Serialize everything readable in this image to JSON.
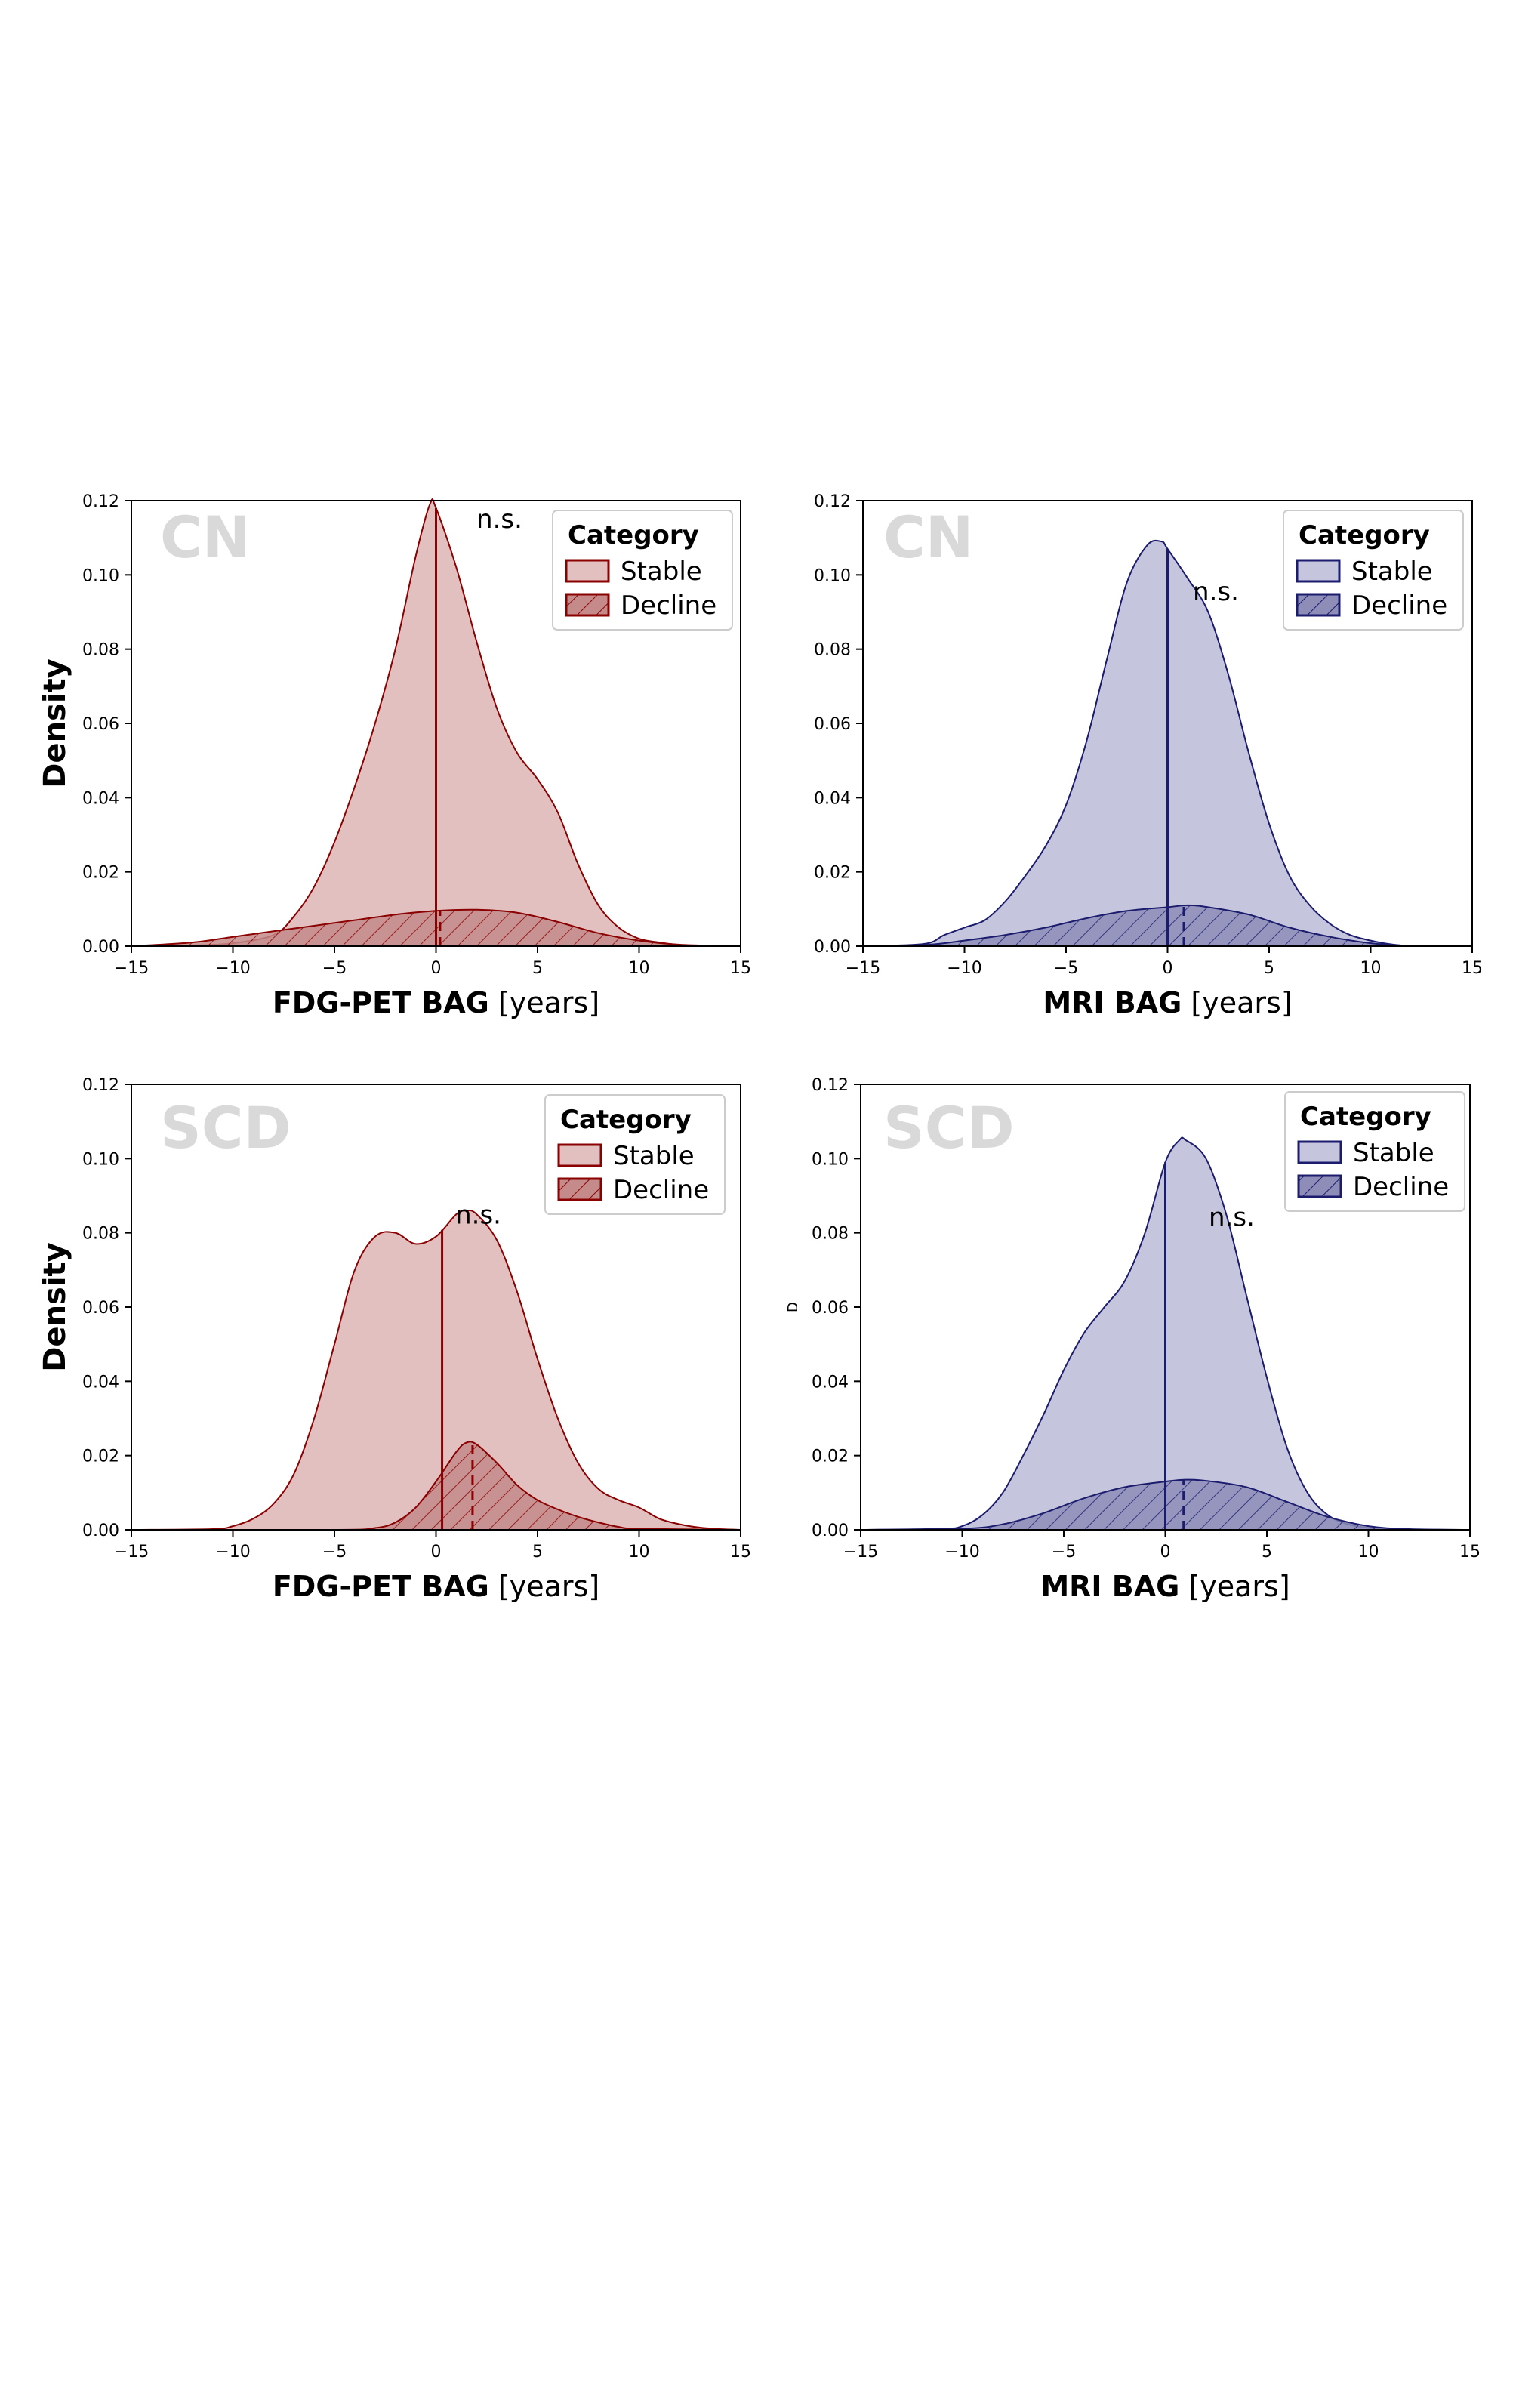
{
  "chart_data": [
    {
      "type": "area",
      "panel_label": "CN",
      "xlabel_bold": "FDG-PET BAG",
      "xlabel_unit": "[years]",
      "ylabel": "Density",
      "xlim": [
        -15,
        15
      ],
      "ylim": [
        0,
        0.12
      ],
      "x_ticks": [
        "−15",
        "−10",
        "−5",
        "0",
        "5",
        "10",
        "15"
      ],
      "y_ticks": [
        "0.00",
        "0.02",
        "0.04",
        "0.06",
        "0.08",
        "0.10",
        "0.12"
      ],
      "annotation": "n.s.",
      "legend": {
        "title": "Category",
        "placement": "upper right",
        "entries": [
          "Stable",
          "Decline"
        ]
      },
      "colors": {
        "line": "#8b0000",
        "fill": "#e2c0c0",
        "decline_fill": "#c58a8a"
      },
      "median_lines": {
        "Stable": 0.0,
        "Decline": 0.2
      },
      "series": [
        {
          "name": "Stable",
          "x": [
            -15,
            -12,
            -10,
            -8,
            -7,
            -6,
            -5,
            -4,
            -3,
            -2,
            -1,
            -0.3,
            0,
            1,
            2,
            3,
            4,
            5,
            6,
            7,
            8,
            9,
            10,
            11,
            12,
            13,
            14,
            15
          ],
          "y": [
            0,
            0.0002,
            0.0008,
            0.003,
            0.008,
            0.016,
            0.028,
            0.043,
            0.06,
            0.08,
            0.105,
            0.119,
            0.118,
            0.102,
            0.082,
            0.064,
            0.052,
            0.045,
            0.036,
            0.022,
            0.011,
            0.005,
            0.002,
            0.001,
            0.0003,
            0.0001,
            0,
            0
          ]
        },
        {
          "name": "Decline",
          "x": [
            -15,
            -12,
            -10,
            -8,
            -6,
            -4,
            -2,
            0,
            2,
            4,
            6,
            8,
            10,
            12,
            14,
            15
          ],
          "y": [
            0,
            0.001,
            0.0025,
            0.004,
            0.0055,
            0.007,
            0.0085,
            0.0095,
            0.0098,
            0.009,
            0.0065,
            0.0035,
            0.0015,
            0.0004,
            0.0001,
            0
          ]
        }
      ]
    },
    {
      "type": "area",
      "panel_label": "CN",
      "xlabel_bold": "MRI BAG",
      "xlabel_unit": "[years]",
      "ylabel": "",
      "xlim": [
        -15,
        15
      ],
      "ylim": [
        0,
        0.12
      ],
      "x_ticks": [
        "−15",
        "−10",
        "−5",
        "0",
        "5",
        "10",
        "15"
      ],
      "y_ticks": [
        "0.00",
        "0.02",
        "0.04",
        "0.06",
        "0.08",
        "0.10",
        "0.12"
      ],
      "annotation": "n.s.",
      "legend": {
        "title": "Category",
        "placement": "upper right",
        "entries": [
          "Stable",
          "Decline"
        ]
      },
      "colors": {
        "line": "#1c1c6e",
        "fill": "#c5c5dd",
        "decline_fill": "#8d8db8"
      },
      "median_lines": {
        "Stable": 0.0,
        "Decline": 0.8
      },
      "series": [
        {
          "name": "Stable",
          "x": [
            -15,
            -12,
            -11,
            -10,
            -9,
            -8,
            -7,
            -6,
            -5,
            -4,
            -3,
            -2,
            -1,
            -0.3,
            0,
            1,
            2,
            3,
            4,
            5,
            6,
            7,
            8,
            9,
            10,
            11,
            12,
            15
          ],
          "y": [
            0,
            0.0006,
            0.003,
            0.005,
            0.007,
            0.012,
            0.019,
            0.027,
            0.038,
            0.055,
            0.077,
            0.098,
            0.108,
            0.109,
            0.107,
            0.099,
            0.09,
            0.073,
            0.052,
            0.033,
            0.019,
            0.011,
            0.006,
            0.003,
            0.0015,
            0.0005,
            0.0001,
            0
          ]
        },
        {
          "name": "Decline",
          "x": [
            -15,
            -12,
            -10,
            -8,
            -6,
            -4,
            -2,
            0,
            1,
            2,
            4,
            6,
            8,
            10,
            12,
            15
          ],
          "y": [
            0,
            0.0003,
            0.0015,
            0.003,
            0.005,
            0.0075,
            0.0095,
            0.0105,
            0.011,
            0.0105,
            0.0085,
            0.005,
            0.0025,
            0.0008,
            0.0001,
            0
          ]
        }
      ]
    },
    {
      "type": "area",
      "panel_label": "SCD",
      "xlabel_bold": "FDG-PET BAG",
      "xlabel_unit": "[years]",
      "ylabel": "Density",
      "xlim": [
        -15,
        15
      ],
      "ylim": [
        0,
        0.12
      ],
      "x_ticks": [
        "−15",
        "−10",
        "−5",
        "0",
        "5",
        "10",
        "15"
      ],
      "y_ticks": [
        "0.00",
        "0.02",
        "0.04",
        "0.06",
        "0.08",
        "0.10",
        "0.12"
      ],
      "annotation": "n.s.",
      "legend": {
        "title": "Category",
        "placement": "upper right",
        "entries": [
          "Stable",
          "Decline"
        ]
      },
      "colors": {
        "line": "#8b0000",
        "fill": "#e2c0c0",
        "decline_fill": "#c58a8a"
      },
      "median_lines": {
        "Stable": 0.3,
        "Decline": 1.8
      },
      "series": [
        {
          "name": "Stable",
          "x": [
            -15,
            -11,
            -10,
            -9,
            -8,
            -7,
            -6,
            -5,
            -4,
            -3,
            -2,
            -1,
            0,
            1,
            1.5,
            2,
            3,
            4,
            5,
            6,
            7,
            8,
            9,
            10,
            11,
            12,
            13,
            14,
            15
          ],
          "y": [
            0,
            0.0002,
            0.001,
            0.003,
            0.007,
            0.015,
            0.03,
            0.05,
            0.07,
            0.079,
            0.08,
            0.077,
            0.079,
            0.085,
            0.086,
            0.085,
            0.078,
            0.064,
            0.046,
            0.03,
            0.018,
            0.011,
            0.008,
            0.006,
            0.003,
            0.0015,
            0.0006,
            0.0002,
            0
          ]
        },
        {
          "name": "Decline",
          "x": [
            -15,
            -5,
            -3,
            -2,
            -1,
            0,
            1,
            1.5,
            2,
            3,
            4,
            5,
            6,
            7,
            8,
            9,
            10,
            15
          ],
          "y": [
            0,
            0,
            0.0005,
            0.002,
            0.006,
            0.013,
            0.021,
            0.0235,
            0.023,
            0.018,
            0.012,
            0.008,
            0.0055,
            0.0035,
            0.002,
            0.0008,
            0.0003,
            0
          ]
        }
      ]
    },
    {
      "type": "area",
      "panel_label": "SCD",
      "xlabel_bold": "MRI BAG",
      "xlabel_unit": "[years]",
      "ylabel": "D",
      "xlim": [
        -15,
        15
      ],
      "ylim": [
        0,
        0.12
      ],
      "x_ticks": [
        "−15",
        "−10",
        "−5",
        "0",
        "5",
        "10",
        "15"
      ],
      "y_ticks": [
        "0.00",
        "0.02",
        "0.04",
        "0.06",
        "0.08",
        "0.10",
        "0.12"
      ],
      "annotation": "n.s.",
      "legend": {
        "title": "Category",
        "placement": "upper right",
        "entries": [
          "Stable",
          "Decline"
        ]
      },
      "colors": {
        "line": "#1c1c6e",
        "fill": "#c5c5dd",
        "decline_fill": "#8d8db8"
      },
      "median_lines": {
        "Stable": 0.0,
        "Decline": 0.9
      },
      "series": [
        {
          "name": "Stable",
          "x": [
            -15,
            -11,
            -10,
            -9,
            -8,
            -7,
            -6,
            -5,
            -4,
            -3,
            -2,
            -1,
            0,
            0.7,
            1,
            2,
            3,
            4,
            5,
            6,
            7,
            8,
            9,
            10,
            11,
            12,
            15
          ],
          "y": [
            0,
            0.0003,
            0.001,
            0.004,
            0.01,
            0.02,
            0.031,
            0.043,
            0.053,
            0.06,
            0.067,
            0.08,
            0.099,
            0.105,
            0.105,
            0.1,
            0.085,
            0.063,
            0.041,
            0.022,
            0.01,
            0.004,
            0.0015,
            0.0005,
            0.0002,
            0,
            0
          ]
        },
        {
          "name": "Decline",
          "x": [
            -15,
            -10,
            -8,
            -6,
            -4,
            -2,
            0,
            1,
            2,
            4,
            6,
            8,
            10,
            12,
            15
          ],
          "y": [
            0,
            0.0003,
            0.0015,
            0.0045,
            0.0085,
            0.0115,
            0.013,
            0.0135,
            0.0132,
            0.0115,
            0.0075,
            0.0035,
            0.001,
            0.0002,
            0
          ]
        }
      ]
    }
  ]
}
